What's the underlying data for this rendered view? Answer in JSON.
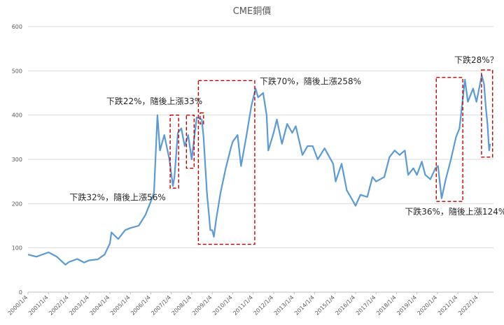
{
  "chart_data": {
    "type": "line",
    "title": "CME銅價",
    "ylim": [
      0,
      600
    ],
    "yticks": [
      0,
      100,
      200,
      300,
      400,
      500,
      600
    ],
    "xlim": [
      "2000/1/4",
      "2022/10/1"
    ],
    "xticks": [
      "2000/1/4",
      "2001/1/4",
      "2002/1/4",
      "2003/1/4",
      "2004/1/4",
      "2005/1/4",
      "2006/1/4",
      "2007/1/4",
      "2008/1/4",
      "2009/1/4",
      "2010/1/4",
      "2011/1/4",
      "2012/1/4",
      "2013/1/4",
      "2014/1/4",
      "2015/1/4",
      "2016/1/4",
      "2017/1/4",
      "2018/1/4",
      "2019/1/4",
      "2020/1/4",
      "2021/1/4",
      "2022/1/4"
    ],
    "grid": true,
    "series": [
      {
        "color": "#5b9bd5",
        "points": [
          [
            "2000/1/4",
            85
          ],
          [
            "2000/6/1",
            80
          ],
          [
            "2001/1/4",
            90
          ],
          [
            "2001/6/1",
            80
          ],
          [
            "2001/11/1",
            62
          ],
          [
            "2002/1/4",
            68
          ],
          [
            "2002/6/1",
            75
          ],
          [
            "2002/10/1",
            67
          ],
          [
            "2003/1/4",
            72
          ],
          [
            "2003/6/1",
            74
          ],
          [
            "2003/10/1",
            85
          ],
          [
            "2004/1/4",
            110
          ],
          [
            "2004/2/1",
            135
          ],
          [
            "2004/6/1",
            120
          ],
          [
            "2004/10/1",
            140
          ],
          [
            "2005/1/4",
            145
          ],
          [
            "2005/6/1",
            150
          ],
          [
            "2005/10/1",
            175
          ],
          [
            "2006/1/4",
            205
          ],
          [
            "2006/3/1",
            225
          ],
          [
            "2006/5/1",
            400
          ],
          [
            "2006/6/15",
            320
          ],
          [
            "2006/9/1",
            355
          ],
          [
            "2006/12/1",
            300
          ],
          [
            "2007/2/1",
            240
          ],
          [
            "2007/3/1",
            260
          ],
          [
            "2007/5/1",
            360
          ],
          [
            "2007/7/1",
            370
          ],
          [
            "2007/9/1",
            330
          ],
          [
            "2007/11/1",
            355
          ],
          [
            "2008/1/4",
            300
          ],
          [
            "2008/4/1",
            395
          ],
          [
            "2008/7/1",
            390
          ],
          [
            "2008/8/1",
            350
          ],
          [
            "2008/10/1",
            225
          ],
          [
            "2008/12/1",
            140
          ],
          [
            "2009/1/4",
            140
          ],
          [
            "2009/2/1",
            125
          ],
          [
            "2009/3/15",
            165
          ],
          [
            "2009/6/1",
            225
          ],
          [
            "2009/9/1",
            280
          ],
          [
            "2009/12/1",
            325
          ],
          [
            "2010/1/4",
            340
          ],
          [
            "2010/4/1",
            355
          ],
          [
            "2010/6/1",
            285
          ],
          [
            "2010/9/1",
            350
          ],
          [
            "2010/12/1",
            420
          ],
          [
            "2011/2/15",
            460
          ],
          [
            "2011/4/1",
            440
          ],
          [
            "2011/7/1",
            450
          ],
          [
            "2011/9/1",
            400
          ],
          [
            "2011/10/1",
            320
          ],
          [
            "2012/1/4",
            360
          ],
          [
            "2012/3/1",
            390
          ],
          [
            "2012/6/1",
            335
          ],
          [
            "2012/9/1",
            380
          ],
          [
            "2012/12/1",
            360
          ],
          [
            "2013/2/1",
            375
          ],
          [
            "2013/6/1",
            310
          ],
          [
            "2013/9/1",
            330
          ],
          [
            "2013/12/1",
            330
          ],
          [
            "2014/3/1",
            300
          ],
          [
            "2014/7/1",
            325
          ],
          [
            "2014/12/1",
            290
          ],
          [
            "2015/1/15",
            250
          ],
          [
            "2015/5/1",
            290
          ],
          [
            "2015/8/1",
            230
          ],
          [
            "2015/11/1",
            210
          ],
          [
            "2016/1/4",
            195
          ],
          [
            "2016/4/1",
            220
          ],
          [
            "2016/8/1",
            215
          ],
          [
            "2016/11/1",
            260
          ],
          [
            "2017/1/4",
            250
          ],
          [
            "2017/6/1",
            260
          ],
          [
            "2017/9/1",
            305
          ],
          [
            "2017/12/1",
            320
          ],
          [
            "2018/3/1",
            310
          ],
          [
            "2018/6/1",
            320
          ],
          [
            "2018/8/1",
            265
          ],
          [
            "2018/11/1",
            280
          ],
          [
            "2019/1/4",
            265
          ],
          [
            "2019/4/1",
            295
          ],
          [
            "2019/6/1",
            265
          ],
          [
            "2019/9/1",
            255
          ],
          [
            "2019/12/1",
            280
          ],
          [
            "2020/1/15",
            285
          ],
          [
            "2020/3/20",
            212
          ],
          [
            "2020/6/1",
            255
          ],
          [
            "2020/9/1",
            300
          ],
          [
            "2020/12/1",
            350
          ],
          [
            "2021/2/1",
            370
          ],
          [
            "2021/5/10",
            480
          ],
          [
            "2021/7/1",
            430
          ],
          [
            "2021/10/1",
            460
          ],
          [
            "2021/12/1",
            430
          ],
          [
            "2022/3/5",
            490
          ],
          [
            "2022/4/15",
            470
          ],
          [
            "2022/5/15",
            420
          ],
          [
            "2022/6/15",
            380
          ],
          [
            "2022/7/15",
            320
          ],
          [
            "2022/8/1",
            335
          ]
        ]
      }
    ],
    "highlight_boxes": [
      {
        "x": [
          "2006/12/15",
          "2007/5/15"
        ],
        "y": [
          235,
          400
        ]
      },
      {
        "x": [
          "2007/10/1",
          "2008/2/15"
        ],
        "y": [
          280,
          400
        ]
      },
      {
        "x": [
          "2008/6/1",
          "2008/8/1"
        ],
        "y": [
          380,
          405
        ]
      },
      {
        "x": [
          "2008/5/1",
          "2011/2/1"
        ],
        "y": [
          108,
          478
        ]
      },
      {
        "x": [
          "2019/12/15",
          "2021/4/1"
        ],
        "y": [
          205,
          485
        ]
      },
      {
        "x": [
          "2022/3/1",
          "2022/9/15"
        ],
        "y": [
          305,
          502
        ]
      }
    ],
    "annotations": [
      {
        "text": "下跌22%，隨後上漲33%",
        "at": [
          "2003/11/1",
          425
        ]
      },
      {
        "text": "下跌32%，隨後上漲56%",
        "at": [
          "2002/1/15",
          208
        ]
      },
      {
        "text": "下跌70%，隨後上漲258%",
        "at": [
          "2011/5/1",
          470
        ]
      },
      {
        "text": "下跌36%，隨後上漲124%",
        "at": [
          "2018/6/1",
          175
        ]
      },
      {
        "text": "下跌28%？",
        "at": [
          "2020/11/1",
          518
        ]
      }
    ]
  }
}
